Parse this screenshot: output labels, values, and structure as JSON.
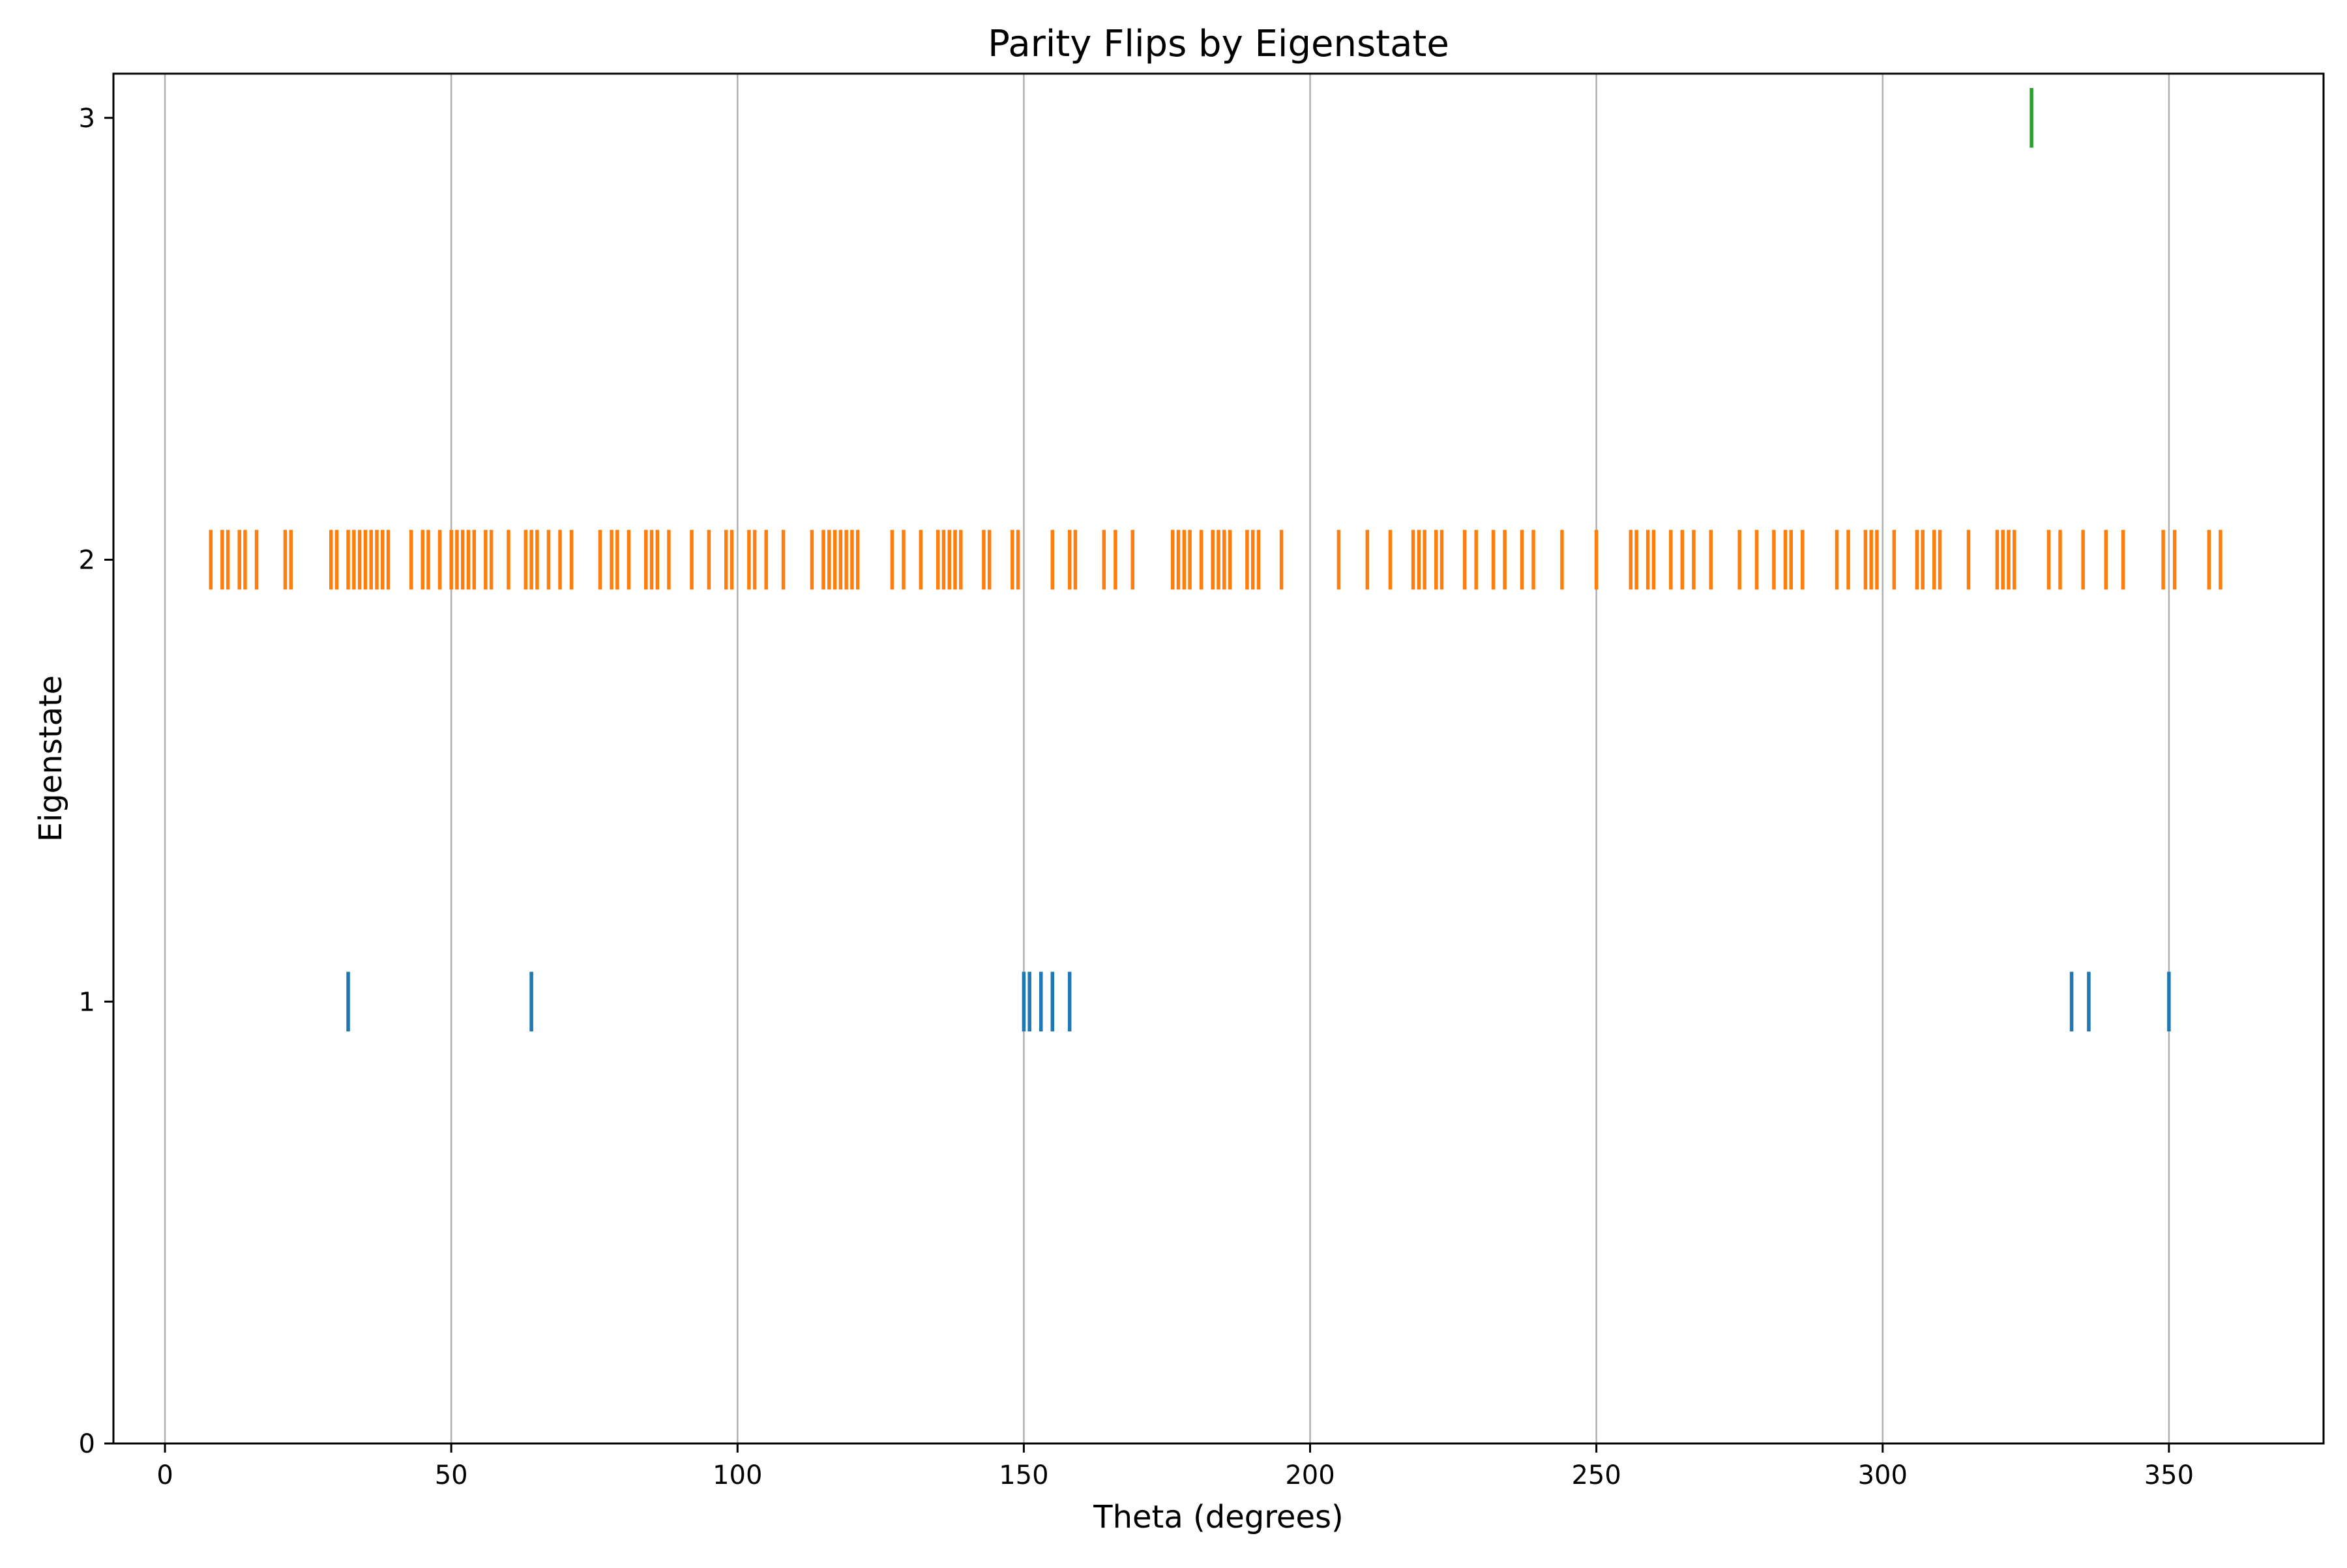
{
  "chart_data": {
    "type": "event",
    "title": "Parity Flips by Eigenstate",
    "xlabel": "Theta (degrees)",
    "ylabel": "Eigenstate",
    "xlim": [
      -9,
      377
    ],
    "ylim": [
      0,
      3.1
    ],
    "xticks": [
      0,
      50,
      100,
      150,
      200,
      250,
      300,
      350
    ],
    "yticks": [
      0,
      1,
      2,
      3
    ],
    "grid": "x-axis vertical lines",
    "series": [
      {
        "eigenstate": 1,
        "color": "#1f77b4",
        "x": [
          32,
          64,
          150,
          151,
          153,
          155,
          158,
          333,
          336,
          350
        ]
      },
      {
        "eigenstate": 2,
        "color": "#ff7f0e",
        "x": [
          8,
          10,
          11,
          13,
          14,
          16,
          21,
          22,
          29,
          30,
          32,
          33,
          34,
          35,
          36,
          37,
          38,
          39,
          43,
          45,
          46,
          48,
          50,
          51,
          52,
          53,
          54,
          56,
          57,
          60,
          63,
          64,
          65,
          67,
          69,
          71,
          76,
          78,
          79,
          81,
          84,
          85,
          86,
          88,
          92,
          95,
          98,
          99,
          102,
          103,
          105,
          108,
          113,
          115,
          116,
          117,
          118,
          119,
          120,
          121,
          127,
          129,
          132,
          135,
          136,
          137,
          138,
          139,
          143,
          144,
          148,
          149,
          155,
          158,
          159,
          164,
          166,
          169,
          176,
          177,
          178,
          179,
          181,
          183,
          184,
          185,
          186,
          189,
          190,
          191,
          195,
          205,
          210,
          214,
          218,
          219,
          220,
          222,
          223,
          227,
          229,
          232,
          234,
          237,
          239,
          244,
          250,
          256,
          257,
          259,
          260,
          263,
          265,
          267,
          270,
          275,
          278,
          281,
          283,
          284,
          286,
          292,
          294,
          297,
          298,
          299,
          302,
          306,
          307,
          309,
          310,
          315,
          320,
          321,
          322,
          323,
          329,
          331,
          335,
          339,
          342,
          349,
          351,
          357,
          359
        ]
      },
      {
        "eigenstate": 3,
        "color": "#2ca02c",
        "x": [
          326
        ]
      }
    ]
  }
}
